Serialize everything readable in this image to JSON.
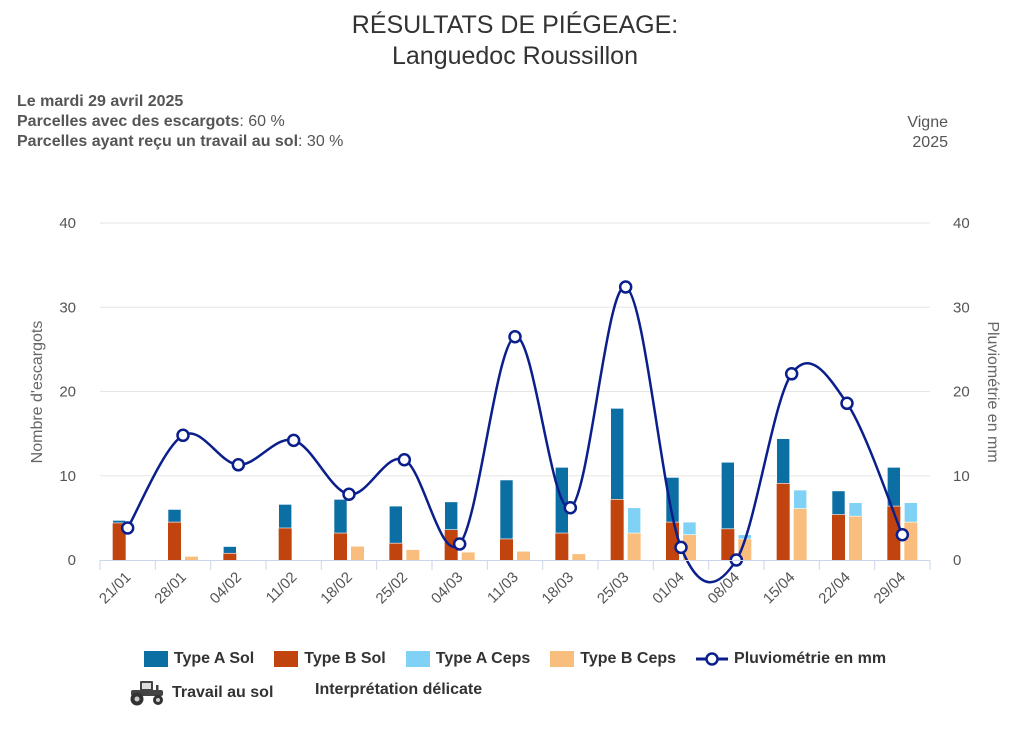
{
  "title_line1": "RÉSULTATS DE PIÉGEAGE:",
  "title_line2": "Languedoc Roussillon",
  "info": {
    "date": "Le mardi 29 avril 2025",
    "escargots_label": "Parcelles avec des escargots",
    "escargots_value": ": 60 %",
    "travail_label": "Parcelles ayant reçu un travail au sol",
    "travail_value": ": 30 %"
  },
  "side": {
    "crop": "Vigne",
    "year": "2025"
  },
  "legend": {
    "type_a_sol": "Type A Sol",
    "type_b_sol": "Type B Sol",
    "type_a_ceps": "Type A Ceps",
    "type_b_ceps": "Type B Ceps",
    "pluvio": "Pluviométrie en mm",
    "travail": "Travail au sol",
    "interpretation": "Interprétation délicate"
  },
  "colors": {
    "type_a_sol": "#0b6fa4",
    "type_b_sol": "#c1440e",
    "type_a_ceps": "#7fd2f5",
    "type_b_ceps": "#f9be7e",
    "pluvio": "#0a1e8c",
    "grid": "#e6e6e6"
  },
  "chart_data": {
    "type": "bar",
    "categories": [
      "21/01",
      "28/01",
      "04/02",
      "11/02",
      "18/02",
      "25/02",
      "04/03",
      "11/03",
      "18/03",
      "25/03",
      "01/04",
      "08/04",
      "15/04",
      "22/04",
      "29/04"
    ],
    "series": [
      {
        "name": "Type A Sol",
        "stack": "sol",
        "values": [
          0.3,
          1.5,
          0.8,
          2.8,
          4.0,
          4.4,
          3.3,
          7.0,
          7.8,
          10.8,
          5.3,
          7.9,
          5.3,
          2.8,
          4.6
        ]
      },
      {
        "name": "Type B Sol",
        "stack": "sol",
        "values": [
          4.4,
          4.5,
          0.8,
          3.8,
          3.2,
          2.0,
          3.6,
          2.5,
          3.2,
          7.2,
          4.5,
          3.7,
          9.1,
          5.4,
          6.4
        ]
      },
      {
        "name": "Type A Ceps",
        "stack": "ceps",
        "values": [
          0,
          0,
          0,
          0,
          0,
          0,
          0,
          0,
          0,
          3.0,
          1.5,
          0.5,
          2.2,
          1.6,
          2.3
        ]
      },
      {
        "name": "Type B Ceps",
        "stack": "ceps",
        "values": [
          0,
          0.4,
          0,
          0,
          1.6,
          1.2,
          0.9,
          1.0,
          0.7,
          3.2,
          3.0,
          2.5,
          6.1,
          5.2,
          4.5
        ]
      },
      {
        "name": "Pluviométrie en mm",
        "type": "line",
        "axis": "right",
        "values": [
          3.8,
          14.8,
          11.3,
          14.2,
          7.8,
          11.9,
          1.9,
          26.5,
          6.2,
          32.4,
          1.5,
          0,
          22.1,
          18.6,
          3.0
        ]
      }
    ],
    "ylabel_left": "Nombre d'escargots",
    "ylabel_right": "Pluviométrie en mm",
    "yticks": [
      0,
      10,
      20,
      30,
      40
    ],
    "ylim": [
      0,
      40
    ],
    "grid": true,
    "legend_position": "bottom"
  }
}
